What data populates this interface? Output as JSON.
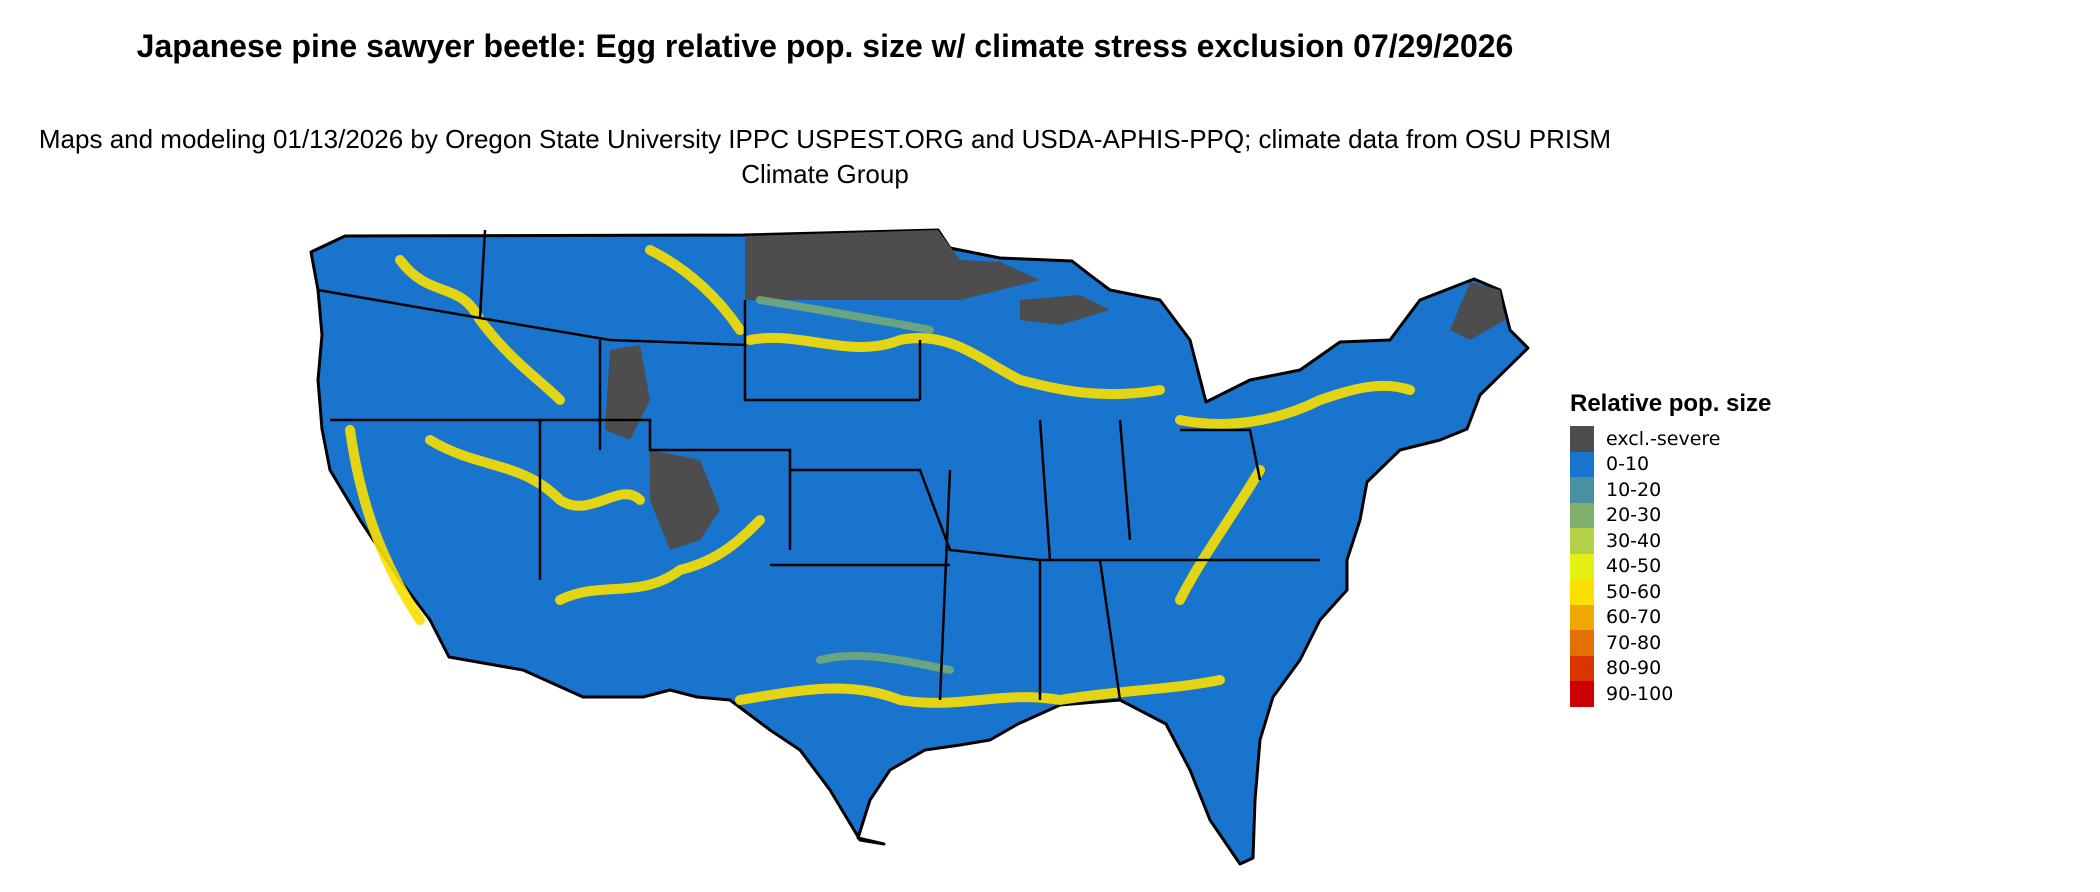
{
  "title": "Japanese pine sawyer beetle: Egg relative pop. size w/ climate stress exclusion 07/29/2026",
  "subtitle": "Maps and modeling 01/13/2026 by Oregon State University IPPC USPEST.ORG and USDA-APHIS-PPQ; climate data from OSU PRISM Climate Group",
  "legend": {
    "title": "Relative pop. size",
    "items": [
      {
        "label": "excl.-severe",
        "color": "#4d4d4d"
      },
      {
        "label": "0-10",
        "color": "#1874cd"
      },
      {
        "label": "10-20",
        "color": "#4a90a0"
      },
      {
        "label": "20-30",
        "color": "#7fb06e"
      },
      {
        "label": "30-40",
        "color": "#b3d046"
      },
      {
        "label": "40-50",
        "color": "#e6f014"
      },
      {
        "label": "50-60",
        "color": "#f9e000"
      },
      {
        "label": "60-70",
        "color": "#efa800"
      },
      {
        "label": "70-80",
        "color": "#e37000"
      },
      {
        "label": "80-90",
        "color": "#d93500"
      },
      {
        "label": "90-100",
        "color": "#cc0000"
      }
    ]
  },
  "map": {
    "region": "Contiguous United States",
    "dominant_class": "0-10"
  }
}
